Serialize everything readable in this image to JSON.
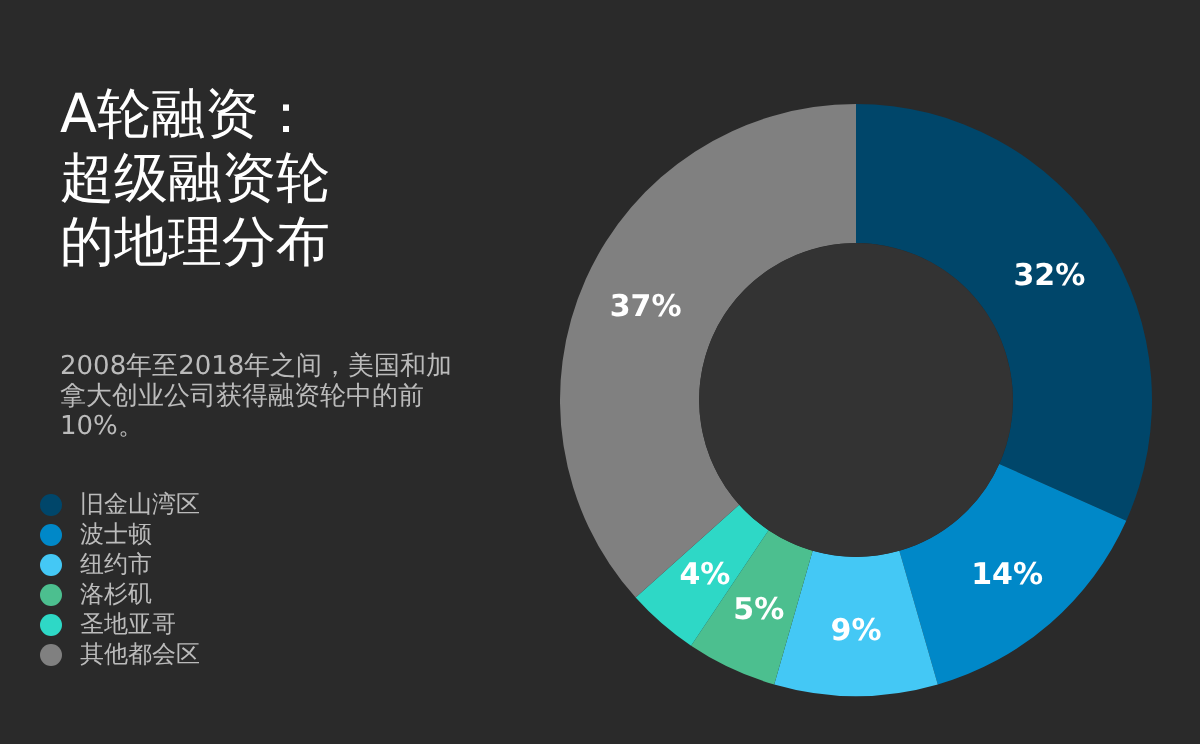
{
  "chart_data": {
    "type": "donut",
    "title": "A轮融资：超级融资轮的地理分布",
    "subtitle": "2008年至2018年之间，美国和加拿大创业公司获得融资轮中的前10%。",
    "categories": [
      "旧金山湾区",
      "波士顿",
      "纽约市",
      "洛杉矶",
      "圣地亚哥",
      "其他都会区"
    ],
    "values": [
      32,
      14,
      9,
      5,
      4,
      37
    ],
    "value_labels": [
      "32%",
      "14%",
      "9%",
      "5%",
      "4%",
      "37%"
    ],
    "colors": [
      "#00466a",
      "#0088c8",
      "#44c8f5",
      "#4cbf8f",
      "#2ed8c6",
      "#808080"
    ],
    "legend": "left"
  }
}
